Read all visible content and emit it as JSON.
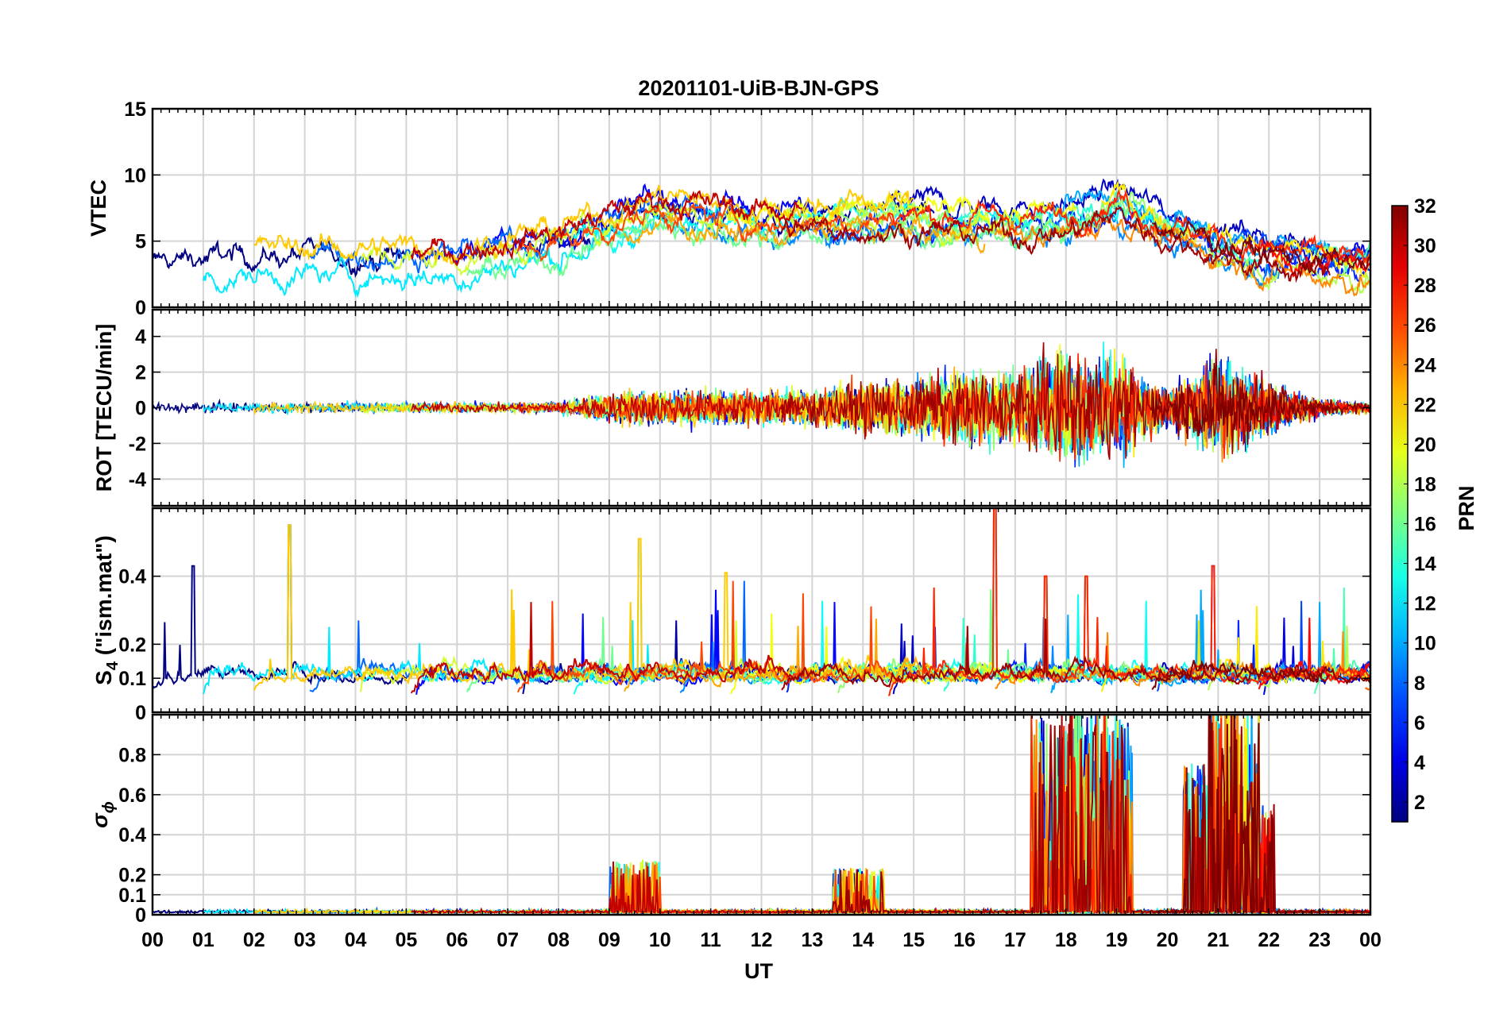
{
  "chart_data": {
    "title": "20201101-UiB-BJN-GPS",
    "type": "line",
    "xlabel": "UT",
    "x_tick_labels": [
      "00",
      "01",
      "02",
      "03",
      "04",
      "05",
      "06",
      "07",
      "08",
      "09",
      "10",
      "11",
      "12",
      "13",
      "14",
      "15",
      "16",
      "17",
      "18",
      "19",
      "20",
      "21",
      "22",
      "23",
      "00"
    ],
    "xlim": [
      0,
      24
    ],
    "grid": true,
    "colorbar": {
      "label": "PRN",
      "range": [
        1,
        32
      ],
      "ticks": [
        "2",
        "4",
        "6",
        "8",
        "10",
        "12",
        "14",
        "16",
        "18",
        "20",
        "22",
        "24",
        "26",
        "28",
        "30",
        "32"
      ],
      "colormap": "jet"
    },
    "panels": [
      {
        "id": "vtec",
        "ylabel": "VTEC",
        "ylim": [
          0,
          15
        ],
        "y_ticks": [
          0,
          5,
          10,
          15
        ],
        "y_tick_labels": [
          "0",
          "5",
          "10",
          "15"
        ],
        "series_description_values": {
          "baseline_by_hour": [
            [
              0,
              3
            ],
            [
              2,
              3.5
            ],
            [
              4,
              3.5
            ],
            [
              6,
              3.5
            ],
            [
              8,
              5
            ],
            [
              10,
              7.5
            ],
            [
              12,
              6.5
            ],
            [
              14,
              7
            ],
            [
              16,
              6.5
            ],
            [
              18,
              6.5
            ],
            [
              19,
              8
            ],
            [
              20,
              6
            ],
            [
              21,
              5
            ],
            [
              22,
              4
            ],
            [
              24,
              3
            ]
          ]
        }
      },
      {
        "id": "rot",
        "ylabel": "ROT [TECU/min]",
        "ylim": [
          -5.5,
          5.5
        ],
        "y_ticks": [
          -4,
          -2,
          0,
          2,
          4
        ],
        "y_tick_labels": [
          "-4",
          "-2",
          "0",
          "2",
          "4"
        ],
        "activity_by_hour": [
          [
            0,
            0.3
          ],
          [
            8,
            0.3
          ],
          [
            9,
            0.9
          ],
          [
            11,
            1.0
          ],
          [
            13,
            1.0
          ],
          [
            14,
            1.5
          ],
          [
            15,
            1.6
          ],
          [
            16,
            2.2
          ],
          [
            17,
            2.0
          ],
          [
            18,
            3.5
          ],
          [
            19,
            3.0
          ],
          [
            20,
            1.0
          ],
          [
            21,
            3.0
          ],
          [
            22,
            1.5
          ],
          [
            23,
            0.5
          ],
          [
            24,
            0.3
          ]
        ]
      },
      {
        "id": "s4",
        "ylabel_main": "S",
        "ylabel_sub": "4",
        "ylabel_suffix": " (\"ism.mat\")",
        "ylim": [
          0,
          0.6
        ],
        "y_ticks": [
          0,
          0.1,
          0.2,
          0.4
        ],
        "y_tick_labels": [
          "0",
          "0.1",
          "0.2",
          "0.4"
        ],
        "peaks": [
          [
            0.8,
            0.43
          ],
          [
            2.7,
            0.55
          ],
          [
            9.6,
            0.51
          ],
          [
            11.3,
            0.41
          ],
          [
            16.6,
            0.6
          ],
          [
            17.6,
            0.4
          ],
          [
            18.4,
            0.4
          ],
          [
            20.9,
            0.43
          ]
        ]
      },
      {
        "id": "sigma_phi",
        "ylabel_main": "σ",
        "ylabel_sub": "ϕ",
        "ylim": [
          0,
          1
        ],
        "y_ticks": [
          0,
          0.1,
          0.2,
          0.4,
          0.6,
          0.8
        ],
        "y_tick_labels": [
          "0",
          "0.1",
          "0.2",
          "0.4",
          "0.6",
          "0.8"
        ],
        "peaks": [
          [
            9.5,
            0.26
          ],
          [
            13.9,
            0.22
          ],
          [
            17.8,
            1.0
          ],
          [
            18.3,
            0.72
          ],
          [
            18.8,
            1.0
          ],
          [
            20.8,
            0.74
          ],
          [
            21.3,
            1.0
          ],
          [
            21.6,
            0.55
          ]
        ]
      }
    ]
  }
}
